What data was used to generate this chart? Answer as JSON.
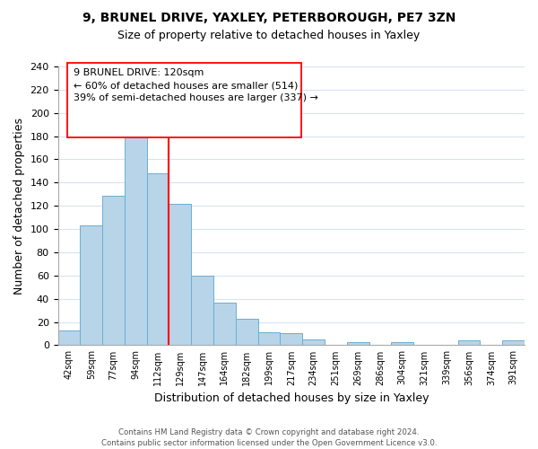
{
  "title": "9, BRUNEL DRIVE, YAXLEY, PETERBOROUGH, PE7 3ZN",
  "subtitle": "Size of property relative to detached houses in Yaxley",
  "xlabel": "Distribution of detached houses by size in Yaxley",
  "ylabel": "Number of detached properties",
  "bins": [
    "42sqm",
    "59sqm",
    "77sqm",
    "94sqm",
    "112sqm",
    "129sqm",
    "147sqm",
    "164sqm",
    "182sqm",
    "199sqm",
    "217sqm",
    "234sqm",
    "251sqm",
    "269sqm",
    "286sqm",
    "304sqm",
    "321sqm",
    "339sqm",
    "356sqm",
    "374sqm",
    "391sqm"
  ],
  "values": [
    13,
    103,
    129,
    190,
    148,
    122,
    60,
    37,
    23,
    11,
    10,
    5,
    0,
    3,
    0,
    3,
    0,
    0,
    4,
    0,
    4
  ],
  "bar_color": "#b8d4e8",
  "bar_edge_color": "#6baed6",
  "vline_color": "red",
  "vline_pos": 4.5,
  "annotation_box_text": "9 BRUNEL DRIVE: 120sqm\n← 60% of detached houses are smaller (514)\n39% of semi-detached houses are larger (337) →",
  "ylim": [
    0,
    240
  ],
  "yticks": [
    0,
    20,
    40,
    60,
    80,
    100,
    120,
    140,
    160,
    180,
    200,
    220,
    240
  ],
  "footer": "Contains HM Land Registry data © Crown copyright and database right 2024.\nContains public sector information licensed under the Open Government Licence v3.0.",
  "background_color": "#ffffff",
  "grid_color": "#d8e4f0"
}
